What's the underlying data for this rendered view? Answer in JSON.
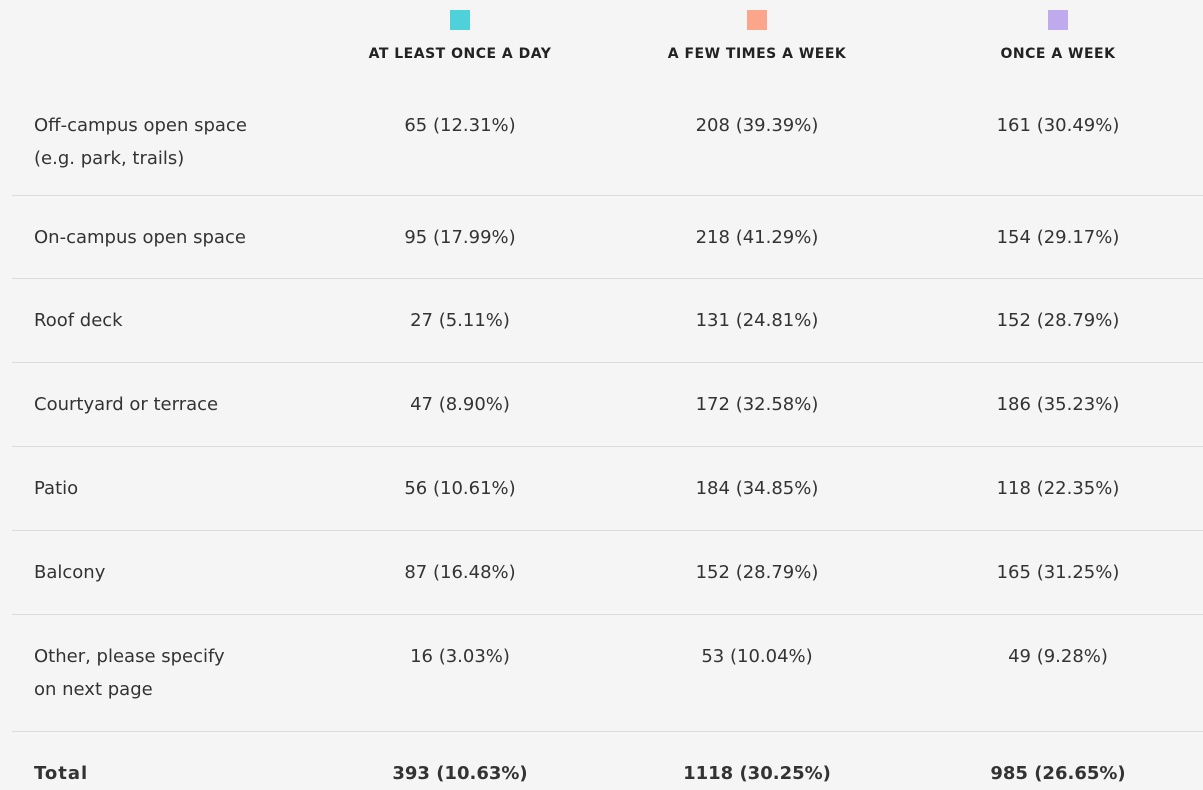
{
  "table": {
    "columns": [
      {
        "label": "AT LEAST ONCE A DAY",
        "color": "#4fd1d9"
      },
      {
        "label": "A FEW TIMES A WEEK",
        "color": "#fba68a"
      },
      {
        "label": "ONCE A WEEK",
        "color": "#bfaaed"
      }
    ],
    "rows": [
      {
        "label": [
          "Off-campus open space",
          "(e.g. park, trails)"
        ],
        "cells": [
          "65 (12.31%)",
          "208 (39.39%)",
          "161 (30.49%)"
        ]
      },
      {
        "label": [
          "On-campus open space"
        ],
        "cells": [
          "95 (17.99%)",
          "218 (41.29%)",
          "154 (29.17%)"
        ]
      },
      {
        "label": [
          "Roof deck"
        ],
        "cells": [
          "27 (5.11%)",
          "131 (24.81%)",
          "152 (28.79%)"
        ]
      },
      {
        "label": [
          "Courtyard or terrace"
        ],
        "cells": [
          "47 (8.90%)",
          "172 (32.58%)",
          "186 (35.23%)"
        ]
      },
      {
        "label": [
          "Patio"
        ],
        "cells": [
          "56 (10.61%)",
          "184 (34.85%)",
          "118 (22.35%)"
        ]
      },
      {
        "label": [
          "Balcony"
        ],
        "cells": [
          "87 (16.48%)",
          "152 (28.79%)",
          "165 (31.25%)"
        ]
      },
      {
        "label": [
          "Other, please specify",
          "on next page"
        ],
        "cells": [
          "16 (3.03%)",
          "53 (10.04%)",
          "49 (9.28%)"
        ]
      }
    ],
    "total": {
      "label": "Total",
      "cells": [
        "393 (10.63%)",
        "1118 (30.25%)",
        "985 (26.65%)"
      ]
    }
  }
}
